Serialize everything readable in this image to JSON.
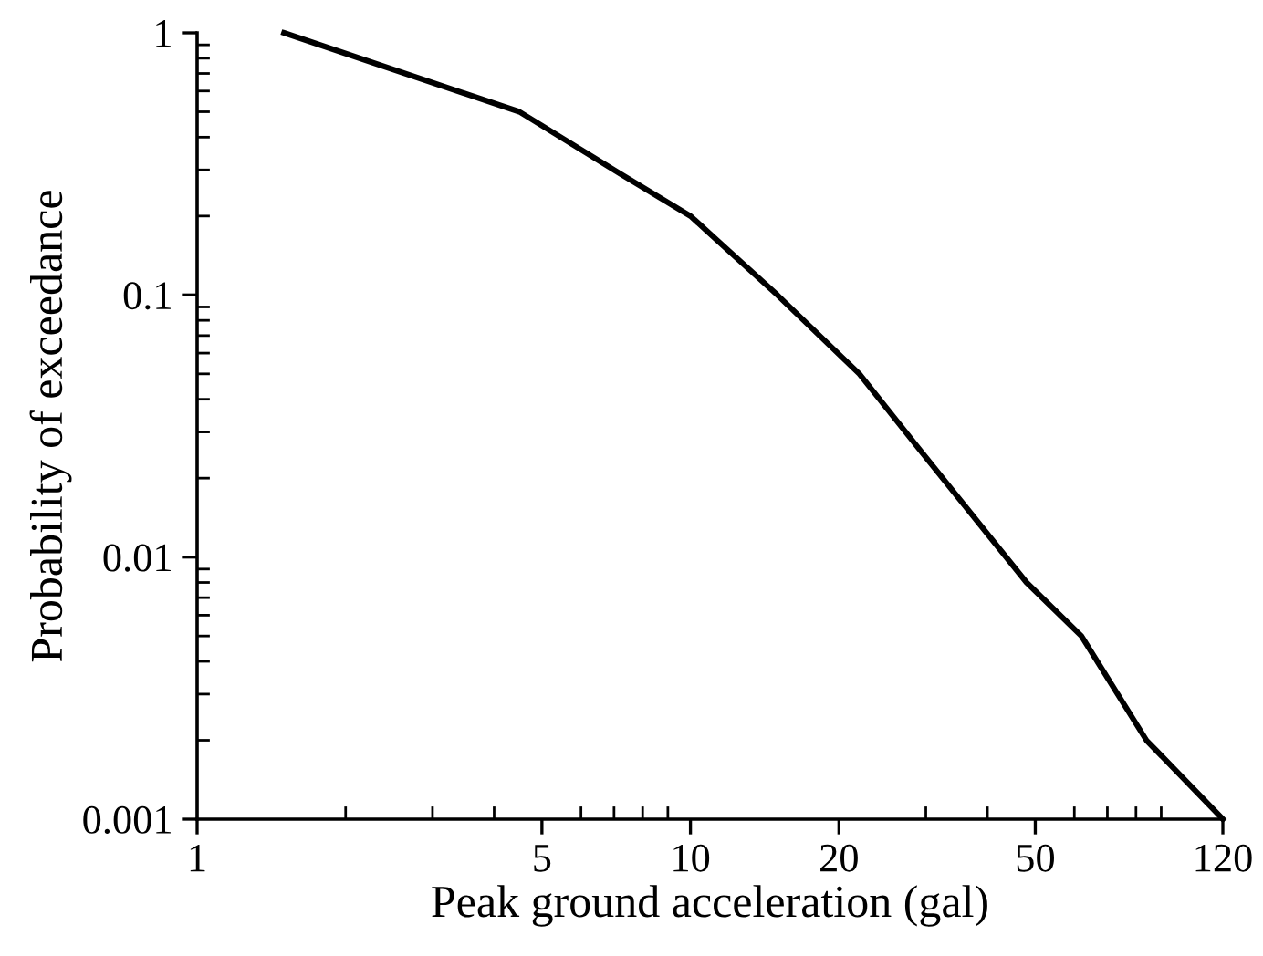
{
  "chart_data": {
    "type": "line",
    "xlabel": "Peak ground acceleration (gal)",
    "ylabel": "Probability of exceedance",
    "log": "xy",
    "x": [
      1.5,
      4.5,
      7.2,
      10,
      15,
      22,
      29,
      48,
      62,
      84,
      120
    ],
    "series": [
      {
        "color": "#000000",
        "values": [
          1,
          0.5,
          0.29,
          0.2,
          0.1,
          0.05,
          0.026,
          0.008,
          0.005,
          0.002,
          0.001
        ]
      }
    ],
    "xlim": [
      1,
      120
    ],
    "ylim": [
      0.001,
      1
    ],
    "xticks": [
      1,
      5,
      10,
      20,
      50,
      120
    ],
    "yticks": [
      0.001,
      0.01,
      0.1,
      1
    ],
    "grid": false,
    "marker": "none",
    "line_style": "solid"
  }
}
